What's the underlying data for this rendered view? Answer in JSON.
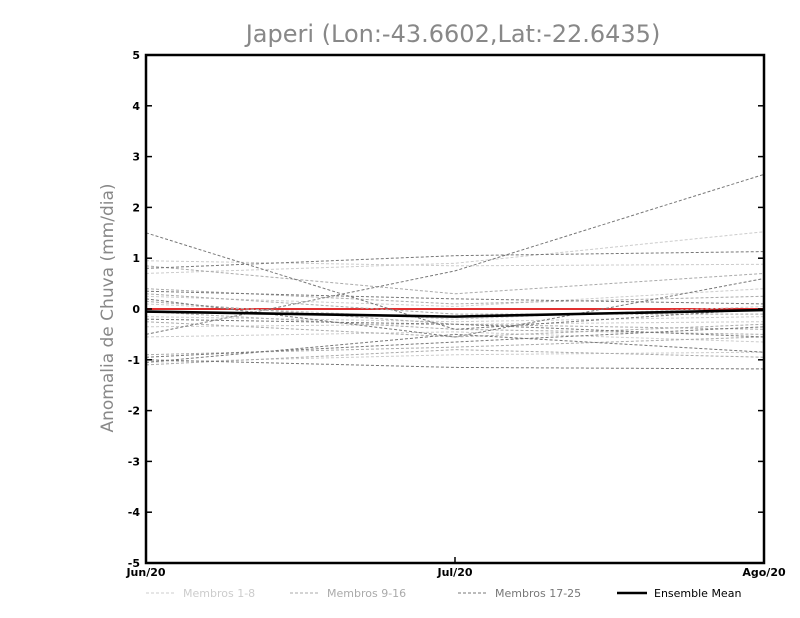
{
  "chart_data": {
    "type": "line",
    "title": "Japeri (Lon:-43.6602,Lat:-22.6435)",
    "xlabel": "",
    "ylabel": "Anomalia de Chuva (mm/dia)",
    "categories": [
      "Jun/20",
      "Jul/20",
      "Ago/20"
    ],
    "ylim": [
      -5,
      5
    ],
    "yticks": [
      -5,
      -4,
      -3,
      -2,
      -1,
      0,
      1,
      2,
      3,
      4,
      5
    ],
    "grid": false,
    "reference_line": {
      "y": 0,
      "color": "#e03030"
    },
    "legend": [
      {
        "label": "Membros 1-8",
        "style": "dashed",
        "color": "#cccccc"
      },
      {
        "label": "Membros 9-16",
        "style": "dashed",
        "color": "#aaaaaa"
      },
      {
        "label": "Membros 17-25",
        "style": "dashed",
        "color": "#777777"
      },
      {
        "label": "Ensemble Mean",
        "style": "solid",
        "color": "#000000"
      }
    ],
    "series": [
      {
        "group": "Membros 1-8",
        "values": [
          0.95,
          0.85,
          0.88
        ]
      },
      {
        "group": "Membros 1-8",
        "values": [
          0.7,
          0.9,
          1.52
        ]
      },
      {
        "group": "Membros 1-8",
        "values": [
          0.25,
          0.05,
          0.4
        ]
      },
      {
        "group": "Membros 1-8",
        "values": [
          0.1,
          -0.2,
          0.05
        ]
      },
      {
        "group": "Membros 1-8",
        "values": [
          -0.15,
          -0.25,
          -0.15
        ]
      },
      {
        "group": "Membros 1-8",
        "values": [
          -0.35,
          -0.3,
          -0.25
        ]
      },
      {
        "group": "Membros 1-8",
        "values": [
          -0.55,
          -0.45,
          -0.65
        ]
      },
      {
        "group": "Membros 1-8",
        "values": [
          -1.05,
          -0.9,
          -0.85
        ]
      },
      {
        "group": "Membros 9-16",
        "values": [
          0.85,
          0.3,
          0.7
        ]
      },
      {
        "group": "Membros 9-16",
        "values": [
          0.4,
          0.1,
          0.25
        ]
      },
      {
        "group": "Membros 9-16",
        "values": [
          0.3,
          -0.1,
          -0.1
        ]
      },
      {
        "group": "Membros 9-16",
        "values": [
          0.15,
          -0.3,
          -0.4
        ]
      },
      {
        "group": "Membros 9-16",
        "values": [
          -0.05,
          -0.4,
          -0.5
        ]
      },
      {
        "group": "Membros 9-16",
        "values": [
          -0.25,
          -0.55,
          -0.3
        ]
      },
      {
        "group": "Membros 9-16",
        "values": [
          -0.9,
          -0.75,
          -0.55
        ]
      },
      {
        "group": "Membros 9-16",
        "values": [
          -1.1,
          -0.8,
          -0.95
        ]
      },
      {
        "group": "Membros 17-25",
        "values": [
          1.5,
          -0.4,
          0.0
        ]
      },
      {
        "group": "Membros 17-25",
        "values": [
          -0.5,
          0.75,
          2.65
        ]
      },
      {
        "group": "Membros 17-25",
        "values": [
          0.8,
          1.05,
          1.13
        ]
      },
      {
        "group": "Membros 17-25",
        "values": [
          0.35,
          0.2,
          0.1
        ]
      },
      {
        "group": "Membros 17-25",
        "values": [
          0.2,
          -0.55,
          0.6
        ]
      },
      {
        "group": "Membros 17-25",
        "values": [
          -0.2,
          -0.3,
          -0.55
        ]
      },
      {
        "group": "Membros 17-25",
        "values": [
          -0.95,
          -0.65,
          -0.35
        ]
      },
      {
        "group": "Membros 17-25",
        "values": [
          -1.0,
          -1.15,
          -1.18
        ]
      },
      {
        "group": "Membros 17-25",
        "values": [
          -1.05,
          -0.5,
          -0.85
        ]
      },
      {
        "group": "Ensemble Mean",
        "values": [
          -0.05,
          -0.15,
          -0.02
        ]
      }
    ]
  }
}
